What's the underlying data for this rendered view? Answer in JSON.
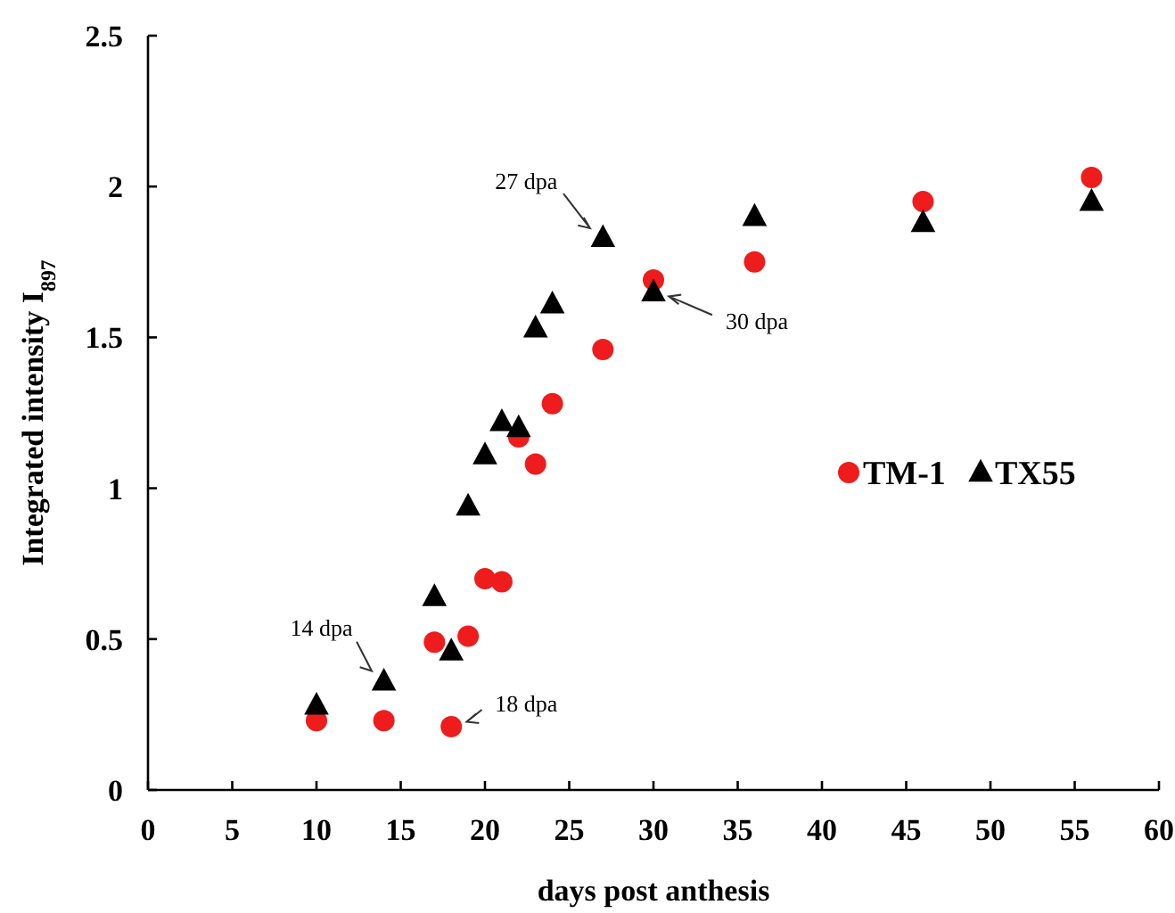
{
  "chart_data": {
    "type": "scatter",
    "xlabel": "days post anthesis",
    "ylabel": "Integrated intensity I$_{897}$",
    "xlim": [
      0,
      60
    ],
    "xticks": [
      0,
      5,
      10,
      15,
      20,
      25,
      30,
      35,
      40,
      45,
      50,
      55,
      60
    ],
    "ylim": [
      0,
      2.5
    ],
    "yticks": [
      0,
      0.5,
      1,
      1.5,
      2,
      2.5
    ],
    "grid": false,
    "legend": "right",
    "series": [
      {
        "name": "TM-1",
        "color": "#ee1c1c",
        "marker": "circle",
        "x": [
          10,
          14,
          17,
          18,
          19,
          20,
          21,
          22,
          23,
          24,
          27,
          30,
          36,
          46,
          56
        ],
        "values": [
          0.23,
          0.23,
          0.49,
          0.21,
          0.51,
          0.7,
          0.69,
          1.17,
          1.08,
          1.28,
          1.46,
          1.69,
          1.75,
          1.95,
          2.03
        ]
      },
      {
        "name": "TX55",
        "color": "#000000",
        "marker": "triangle",
        "x": [
          10,
          14,
          17,
          18,
          19,
          20,
          21,
          22,
          23,
          24,
          27,
          30,
          36,
          46,
          56
        ],
        "values": [
          0.28,
          0.36,
          0.64,
          0.46,
          0.94,
          1.11,
          1.22,
          1.2,
          1.53,
          1.61,
          1.83,
          1.65,
          1.9,
          1.88,
          1.95
        ]
      }
    ],
    "annotations": [
      {
        "text": "14 dpa",
        "x": 14,
        "y": 0.36
      },
      {
        "text": "18 dpa",
        "x": 18,
        "y": 0.21
      },
      {
        "text": "27 dpa",
        "x": 27,
        "y": 1.83
      },
      {
        "text": "30 dpa",
        "x": 30,
        "y": 1.65
      }
    ]
  }
}
